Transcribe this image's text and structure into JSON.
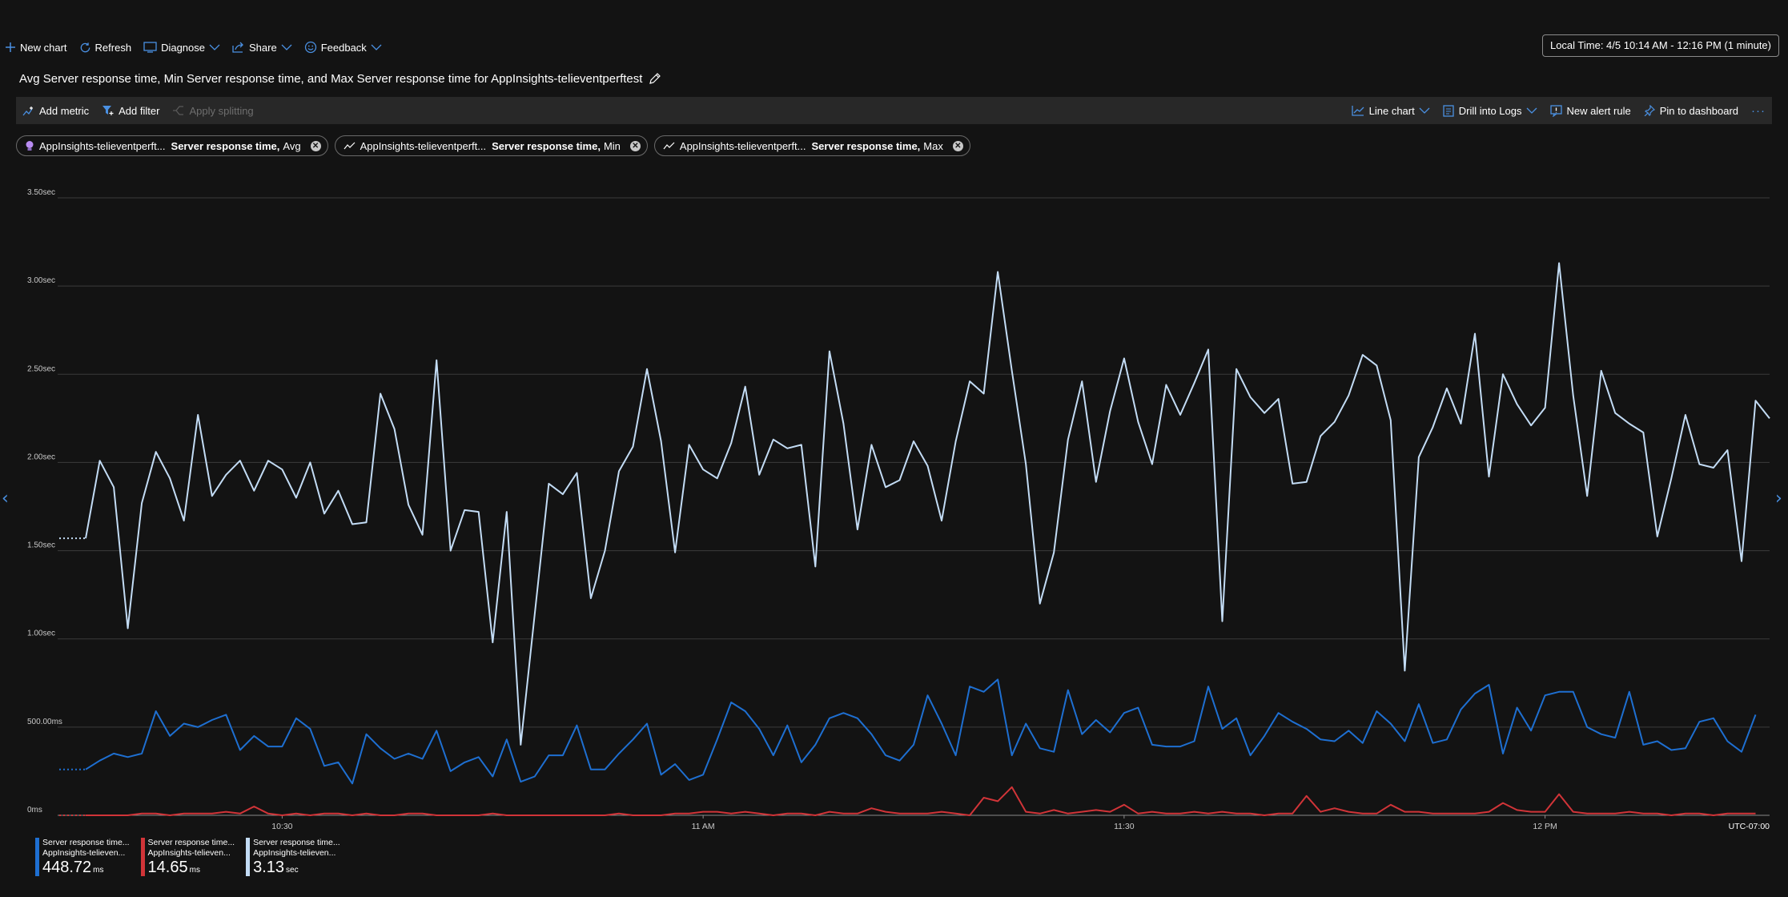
{
  "toolbar": {
    "new_chart": "New chart",
    "refresh": "Refresh",
    "diagnose": "Diagnose",
    "share": "Share",
    "feedback": "Feedback"
  },
  "time_range": "Local Time: 4/5 10:14 AM - 12:16 PM (1 minute)",
  "title": "Avg Server response time, Min Server response time, and Max Server response time for AppInsights-telieventperftest",
  "cmdbar": {
    "add_metric": "Add metric",
    "add_filter": "Add filter",
    "apply_splitting": "Apply splitting",
    "line_chart": "Line chart",
    "drill_into_logs": "Drill into Logs",
    "new_alert_rule": "New alert rule",
    "pin_to_dashboard": "Pin to dashboard",
    "more": "···"
  },
  "pills": [
    {
      "resource": "AppInsights-telieventperft...",
      "metric": "Server response time,",
      "agg": "Avg",
      "icon": "lightbulb-icon",
      "color": "#b98cf2"
    },
    {
      "resource": "AppInsights-telieventperft...",
      "metric": "Server response time,",
      "agg": "Min",
      "icon": "metric-line-icon",
      "color": "#ffffff"
    },
    {
      "resource": "AppInsights-telieventperft...",
      "metric": "Server response time,",
      "agg": "Max",
      "icon": "metric-line-icon",
      "color": "#ffffff"
    }
  ],
  "legend": [
    {
      "line1": "Server response time...",
      "line2": "AppInsights-telieven...",
      "value": "448.72",
      "unit": "ms",
      "color": "#1e6fd1"
    },
    {
      "line1": "Server response time...",
      "line2": "AppInsights-telieven...",
      "value": "14.65",
      "unit": "ms",
      "color": "#d13438"
    },
    {
      "line1": "Server response time...",
      "line2": "AppInsights-telieven...",
      "value": "3.13",
      "unit": "sec",
      "color": "#c3dcf5"
    }
  ],
  "chart_data": {
    "type": "line",
    "ylabel": "",
    "xlabel": "",
    "ylim": [
      0,
      3.5
    ],
    "yunit": "sec",
    "y_ticks": [
      {
        "value": 0,
        "label": "0ms"
      },
      {
        "value": 0.5,
        "label": "500.00ms"
      },
      {
        "value": 1.0,
        "label": "1.00sec"
      },
      {
        "value": 1.5,
        "label": "1.50sec"
      },
      {
        "value": 2.0,
        "label": "2.00sec"
      },
      {
        "value": 2.5,
        "label": "2.50sec"
      },
      {
        "value": 3.0,
        "label": "3.00sec"
      },
      {
        "value": 3.5,
        "label": "3.50sec"
      }
    ],
    "x_ticks": [
      {
        "minute": 16,
        "label": "10:30"
      },
      {
        "minute": 46,
        "label": "11 AM"
      },
      {
        "minute": 76,
        "label": "11:30"
      },
      {
        "minute": 106,
        "label": "12 PM"
      }
    ],
    "x_range_minutes": [
      0,
      122
    ],
    "first_point_minute": 2,
    "minute_step": 1,
    "timezone_label": "UTC-07:00",
    "grid": true,
    "series": [
      {
        "name": "Server response time, Max",
        "color": "#c3dcf5",
        "values": [
          1.57,
          2.01,
          1.86,
          1.06,
          1.77,
          2.06,
          1.91,
          1.67,
          2.27,
          1.81,
          1.93,
          2.01,
          1.84,
          2.01,
          1.96,
          1.8,
          2.0,
          1.71,
          1.84,
          1.65,
          1.66,
          2.39,
          2.19,
          1.76,
          1.59,
          2.58,
          1.5,
          1.73,
          1.72,
          0.98,
          1.72,
          0.4,
          1.14,
          1.88,
          1.82,
          1.94,
          1.23,
          1.5,
          1.95,
          2.09,
          2.53,
          2.12,
          1.49,
          2.1,
          1.96,
          1.91,
          2.11,
          2.43,
          1.93,
          2.13,
          2.08,
          2.1,
          1.41,
          2.63,
          2.22,
          1.62,
          2.1,
          1.86,
          1.9,
          2.12,
          1.98,
          1.67,
          2.12,
          2.46,
          2.39,
          3.08,
          2.52,
          1.99,
          1.2,
          1.49,
          2.13,
          2.46,
          1.89,
          2.29,
          2.59,
          2.23,
          1.99,
          2.44,
          2.27,
          2.45,
          2.64,
          1.1,
          2.53,
          2.37,
          2.28,
          2.36,
          1.88,
          1.89,
          2.15,
          2.23,
          2.38,
          2.61,
          2.55,
          2.24,
          0.82,
          2.03,
          2.2,
          2.42,
          2.22,
          2.73,
          1.92,
          2.5,
          2.33,
          2.21,
          2.31,
          3.13,
          2.38,
          1.81,
          2.52,
          2.28,
          2.22,
          2.17,
          1.58,
          1.91,
          2.27,
          1.99,
          1.97,
          2.07,
          1.44,
          2.35,
          2.25
        ]
      },
      {
        "name": "Server response time, Avg",
        "color": "#1e6fd1",
        "values": [
          0.26,
          0.31,
          0.35,
          0.33,
          0.35,
          0.59,
          0.45,
          0.52,
          0.5,
          0.54,
          0.57,
          0.37,
          0.45,
          0.39,
          0.39,
          0.55,
          0.49,
          0.28,
          0.3,
          0.18,
          0.46,
          0.38,
          0.32,
          0.35,
          0.32,
          0.48,
          0.25,
          0.3,
          0.33,
          0.22,
          0.43,
          0.19,
          0.22,
          0.34,
          0.34,
          0.51,
          0.26,
          0.26,
          0.35,
          0.43,
          0.52,
          0.23,
          0.29,
          0.2,
          0.23,
          0.43,
          0.64,
          0.59,
          0.49,
          0.34,
          0.51,
          0.3,
          0.4,
          0.55,
          0.58,
          0.55,
          0.46,
          0.34,
          0.31,
          0.4,
          0.68,
          0.52,
          0.34,
          0.73,
          0.7,
          0.77,
          0.34,
          0.52,
          0.38,
          0.36,
          0.71,
          0.46,
          0.54,
          0.47,
          0.58,
          0.61,
          0.4,
          0.39,
          0.39,
          0.42,
          0.73,
          0.49,
          0.55,
          0.34,
          0.45,
          0.58,
          0.53,
          0.49,
          0.43,
          0.42,
          0.48,
          0.41,
          0.59,
          0.52,
          0.42,
          0.63,
          0.41,
          0.43,
          0.6,
          0.69,
          0.74,
          0.35,
          0.61,
          0.48,
          0.68,
          0.7,
          0.7,
          0.5,
          0.46,
          0.44,
          0.7,
          0.4,
          0.42,
          0.37,
          0.38,
          0.53,
          0.55,
          0.42,
          0.36,
          0.57
        ]
      },
      {
        "name": "Server response time, Min",
        "color": "#d13438",
        "values": [
          0.0,
          0.0,
          0.0,
          0.0,
          0.01,
          0.01,
          0.0,
          0.01,
          0.01,
          0.01,
          0.02,
          0.01,
          0.05,
          0.01,
          0.0,
          0.01,
          0.0,
          0.01,
          0.01,
          0.0,
          0.01,
          0.0,
          0.0,
          0.01,
          0.01,
          0.0,
          0.0,
          0.0,
          0.0,
          0.01,
          0.0,
          0.0,
          0.0,
          0.0,
          0.0,
          0.0,
          0.0,
          0.0,
          0.01,
          0.0,
          0.0,
          0.0,
          0.01,
          0.01,
          0.02,
          0.02,
          0.01,
          0.02,
          0.01,
          0.0,
          0.01,
          0.01,
          0.0,
          0.02,
          0.01,
          0.01,
          0.04,
          0.02,
          0.01,
          0.01,
          0.01,
          0.02,
          0.01,
          0.0,
          0.1,
          0.08,
          0.16,
          0.02,
          0.01,
          0.03,
          0.01,
          0.02,
          0.03,
          0.02,
          0.06,
          0.01,
          0.02,
          0.01,
          0.01,
          0.02,
          0.01,
          0.02,
          0.01,
          0.01,
          0.0,
          0.01,
          0.01,
          0.11,
          0.02,
          0.04,
          0.02,
          0.01,
          0.01,
          0.06,
          0.02,
          0.02,
          0.01,
          0.01,
          0.01,
          0.01,
          0.02,
          0.07,
          0.03,
          0.02,
          0.02,
          0.12,
          0.02,
          0.01,
          0.01,
          0.01,
          0.02,
          0.01,
          0.01,
          0.0,
          0.01,
          0.01,
          0.0,
          0.01,
          0.01,
          0.01
        ]
      }
    ]
  }
}
